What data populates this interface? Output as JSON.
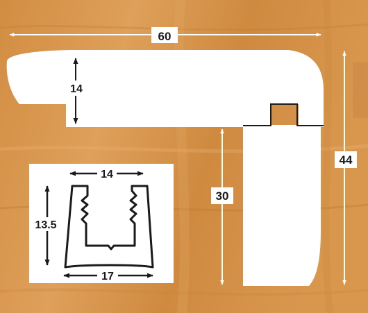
{
  "colors": {
    "wood_base": "#d69448",
    "wood_light": "#e6ab66",
    "wood_dark": "#b8732f",
    "profile_fill": "#ffffff",
    "ink": "#1a1a1a",
    "dimension_line": "#ffffff"
  },
  "dimensions": {
    "overall_width": "60",
    "top_thickness": "14",
    "overall_height": "44",
    "leg_height": "30"
  },
  "inset": {
    "top_width": "14",
    "height": "13.5",
    "bottom_width": "17"
  }
}
